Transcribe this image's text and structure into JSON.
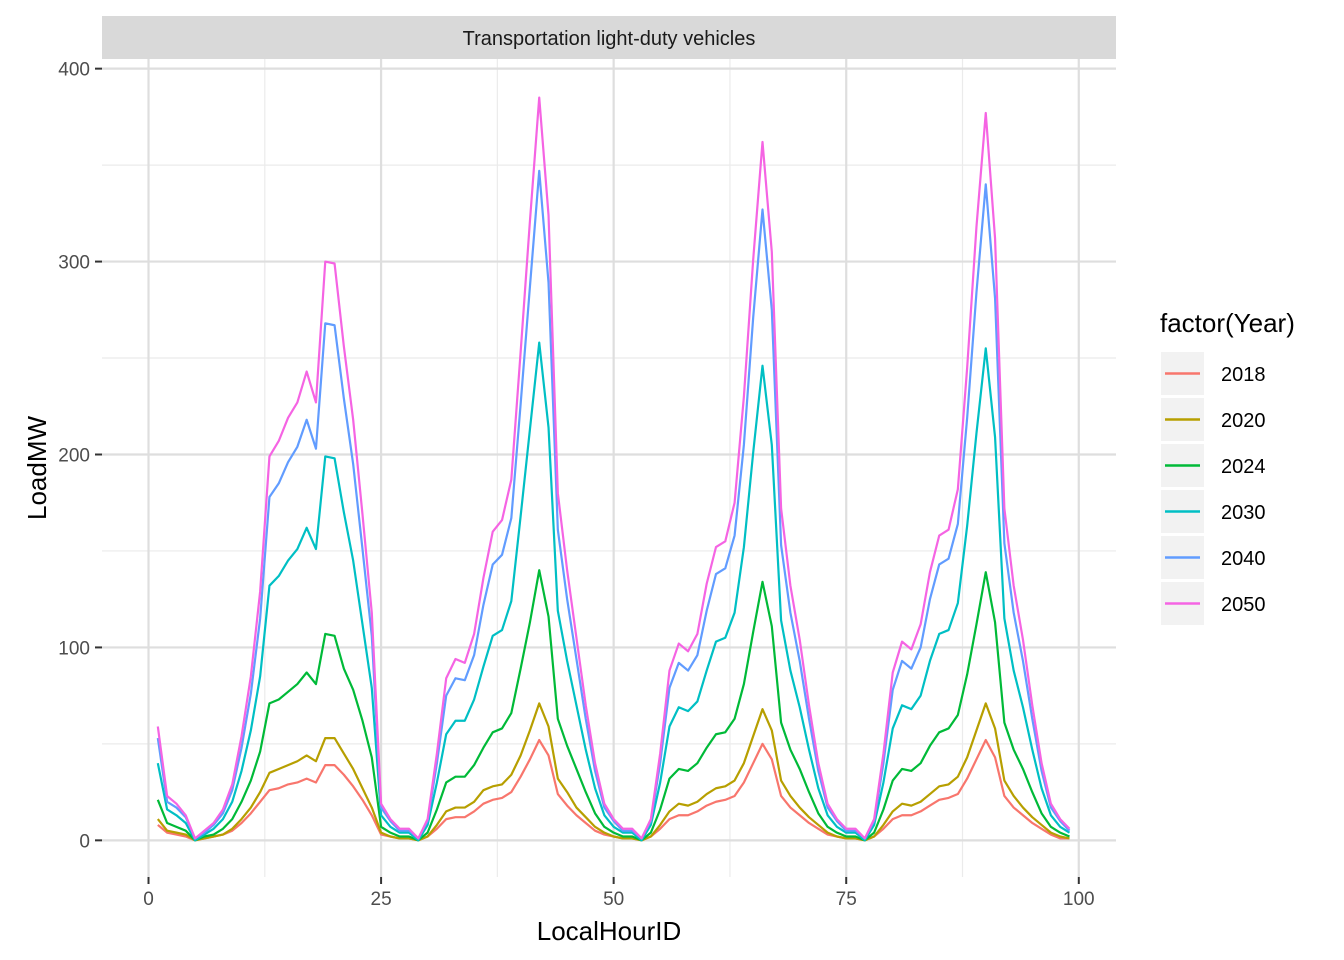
{
  "chart_data": {
    "type": "line",
    "facet_title": "Transportation light-duty vehicles",
    "xlabel": "LocalHourID",
    "ylabel": "LoadMW",
    "xlim": [
      -5,
      104
    ],
    "ylim": [
      -19,
      405
    ],
    "x_ticks": [
      0,
      25,
      50,
      75,
      100
    ],
    "y_ticks": [
      0,
      100,
      200,
      300,
      400
    ],
    "x_tick_labels": [
      "0",
      "25",
      "50",
      "75",
      "100"
    ],
    "y_tick_labels": [
      "0",
      "100",
      "200",
      "300",
      "400"
    ],
    "grid": true,
    "legend": {
      "title": "factor(Year)",
      "position": "right"
    },
    "x": [
      1,
      2,
      3,
      4,
      5,
      6,
      7,
      8,
      9,
      10,
      11,
      12,
      13,
      14,
      15,
      16,
      17,
      18,
      19,
      20,
      21,
      22,
      23,
      24,
      25,
      26,
      27,
      28,
      29,
      30,
      31,
      32,
      33,
      34,
      35,
      36,
      37,
      38,
      39,
      40,
      41,
      42,
      43,
      44,
      45,
      46,
      47,
      48,
      49,
      50,
      51,
      52,
      53,
      54,
      55,
      56,
      57,
      58,
      59,
      60,
      61,
      62,
      63,
      64,
      65,
      66,
      67,
      68,
      69,
      70,
      71,
      72,
      73,
      74,
      75,
      76,
      77,
      78,
      79,
      80,
      81,
      82,
      83,
      84,
      85,
      86,
      87,
      88,
      89,
      90,
      91,
      92,
      93,
      94,
      95,
      96,
      97,
      98,
      99
    ],
    "series": [
      {
        "name": "2018",
        "color": "#F8766D",
        "values": [
          8,
          4,
          3,
          2,
          0,
          1,
          2,
          3,
          5,
          9,
          14,
          20,
          26,
          27,
          29,
          30,
          32,
          30,
          39,
          39,
          34,
          28,
          21,
          13,
          3,
          2,
          1,
          1,
          0,
          2,
          6,
          11,
          12,
          12,
          15,
          19,
          21,
          22,
          25,
          33,
          42,
          52,
          44,
          24,
          18,
          13,
          9,
          5,
          3,
          2,
          1,
          1,
          0,
          2,
          6,
          11,
          13,
          13,
          15,
          18,
          20,
          21,
          23,
          30,
          40,
          50,
          42,
          23,
          17,
          13,
          9,
          6,
          3,
          2,
          1,
          1,
          0,
          2,
          6,
          11,
          13,
          13,
          15,
          18,
          21,
          22,
          24,
          32,
          42,
          52,
          43,
          23,
          17,
          13,
          9,
          6,
          3,
          1,
          1
        ]
      },
      {
        "name": "2020",
        "color": "#B79F00",
        "values": [
          11,
          5,
          4,
          3,
          0,
          1,
          2,
          3,
          6,
          11,
          17,
          25,
          35,
          37,
          39,
          41,
          44,
          41,
          53,
          53,
          45,
          37,
          27,
          17,
          4,
          2,
          1,
          1,
          0,
          2,
          8,
          15,
          17,
          17,
          20,
          26,
          28,
          29,
          34,
          44,
          57,
          71,
          59,
          32,
          25,
          17,
          12,
          7,
          4,
          2,
          1,
          1,
          0,
          2,
          8,
          15,
          19,
          18,
          20,
          24,
          27,
          28,
          31,
          40,
          54,
          68,
          57,
          31,
          23,
          17,
          12,
          8,
          4,
          2,
          1,
          1,
          0,
          2,
          8,
          15,
          19,
          18,
          20,
          24,
          28,
          29,
          33,
          43,
          57,
          71,
          58,
          31,
          23,
          17,
          12,
          8,
          4,
          2,
          1
        ]
      },
      {
        "name": "2024",
        "color": "#00BA38",
        "values": [
          21,
          9,
          7,
          5,
          0,
          2,
          3,
          6,
          11,
          20,
          31,
          46,
          71,
          73,
          77,
          81,
          87,
          81,
          107,
          106,
          89,
          78,
          62,
          43,
          7,
          4,
          2,
          2,
          0,
          4,
          16,
          30,
          33,
          33,
          39,
          48,
          56,
          58,
          66,
          89,
          113,
          140,
          116,
          63,
          49,
          37,
          25,
          14,
          7,
          4,
          2,
          2,
          0,
          4,
          16,
          32,
          37,
          36,
          40,
          48,
          55,
          56,
          63,
          81,
          108,
          134,
          111,
          61,
          47,
          37,
          25,
          14,
          7,
          4,
          2,
          2,
          0,
          4,
          16,
          31,
          37,
          36,
          40,
          49,
          56,
          58,
          65,
          86,
          112,
          139,
          113,
          61,
          47,
          37,
          25,
          14,
          7,
          4,
          2
        ]
      },
      {
        "name": "2030",
        "color": "#00BFC4",
        "values": [
          40,
          16,
          13,
          9,
          0,
          3,
          6,
          11,
          20,
          36,
          57,
          85,
          132,
          137,
          145,
          151,
          162,
          151,
          199,
          198,
          170,
          145,
          112,
          79,
          13,
          7,
          4,
          4,
          0,
          8,
          30,
          55,
          62,
          62,
          73,
          90,
          106,
          109,
          124,
          168,
          213,
          258,
          214,
          119,
          93,
          70,
          47,
          27,
          13,
          7,
          4,
          4,
          0,
          8,
          30,
          59,
          69,
          67,
          72,
          88,
          103,
          105,
          118,
          152,
          201,
          246,
          205,
          114,
          88,
          69,
          47,
          27,
          13,
          7,
          4,
          4,
          0,
          8,
          30,
          58,
          70,
          68,
          75,
          93,
          107,
          109,
          123,
          163,
          211,
          255,
          209,
          115,
          88,
          69,
          47,
          27,
          13,
          7,
          4
        ]
      },
      {
        "name": "2040",
        "color": "#619CFF",
        "values": [
          53,
          20,
          17,
          12,
          1,
          4,
          8,
          14,
          26,
          48,
          76,
          115,
          178,
          185,
          196,
          204,
          218,
          203,
          268,
          267,
          229,
          195,
          151,
          106,
          17,
          10,
          5,
          5,
          1,
          10,
          40,
          75,
          84,
          83,
          96,
          122,
          143,
          148,
          167,
          226,
          287,
          347,
          289,
          161,
          125,
          94,
          63,
          36,
          17,
          10,
          5,
          5,
          1,
          10,
          40,
          79,
          92,
          88,
          96,
          119,
          138,
          141,
          158,
          205,
          271,
          327,
          275,
          153,
          118,
          93,
          63,
          36,
          17,
          10,
          5,
          5,
          1,
          10,
          40,
          78,
          93,
          89,
          100,
          125,
          143,
          146,
          164,
          219,
          284,
          340,
          281,
          154,
          118,
          93,
          63,
          36,
          17,
          10,
          5
        ]
      },
      {
        "name": "2050",
        "color": "#F564E3",
        "values": [
          59,
          23,
          19,
          13,
          1,
          5,
          9,
          16,
          29,
          54,
          85,
          129,
          199,
          207,
          219,
          227,
          243,
          227,
          300,
          299,
          256,
          218,
          169,
          118,
          19,
          11,
          6,
          6,
          1,
          11,
          45,
          84,
          94,
          92,
          107,
          136,
          160,
          166,
          187,
          253,
          321,
          385,
          324,
          180,
          140,
          105,
          70,
          40,
          19,
          11,
          6,
          6,
          1,
          11,
          45,
          88,
          102,
          98,
          107,
          133,
          152,
          155,
          175,
          230,
          301,
          362,
          305,
          172,
          132,
          104,
          70,
          40,
          19,
          11,
          6,
          6,
          1,
          11,
          45,
          87,
          103,
          99,
          112,
          139,
          158,
          161,
          182,
          245,
          318,
          377,
          312,
          172,
          132,
          104,
          70,
          40,
          19,
          11,
          6
        ]
      }
    ]
  }
}
